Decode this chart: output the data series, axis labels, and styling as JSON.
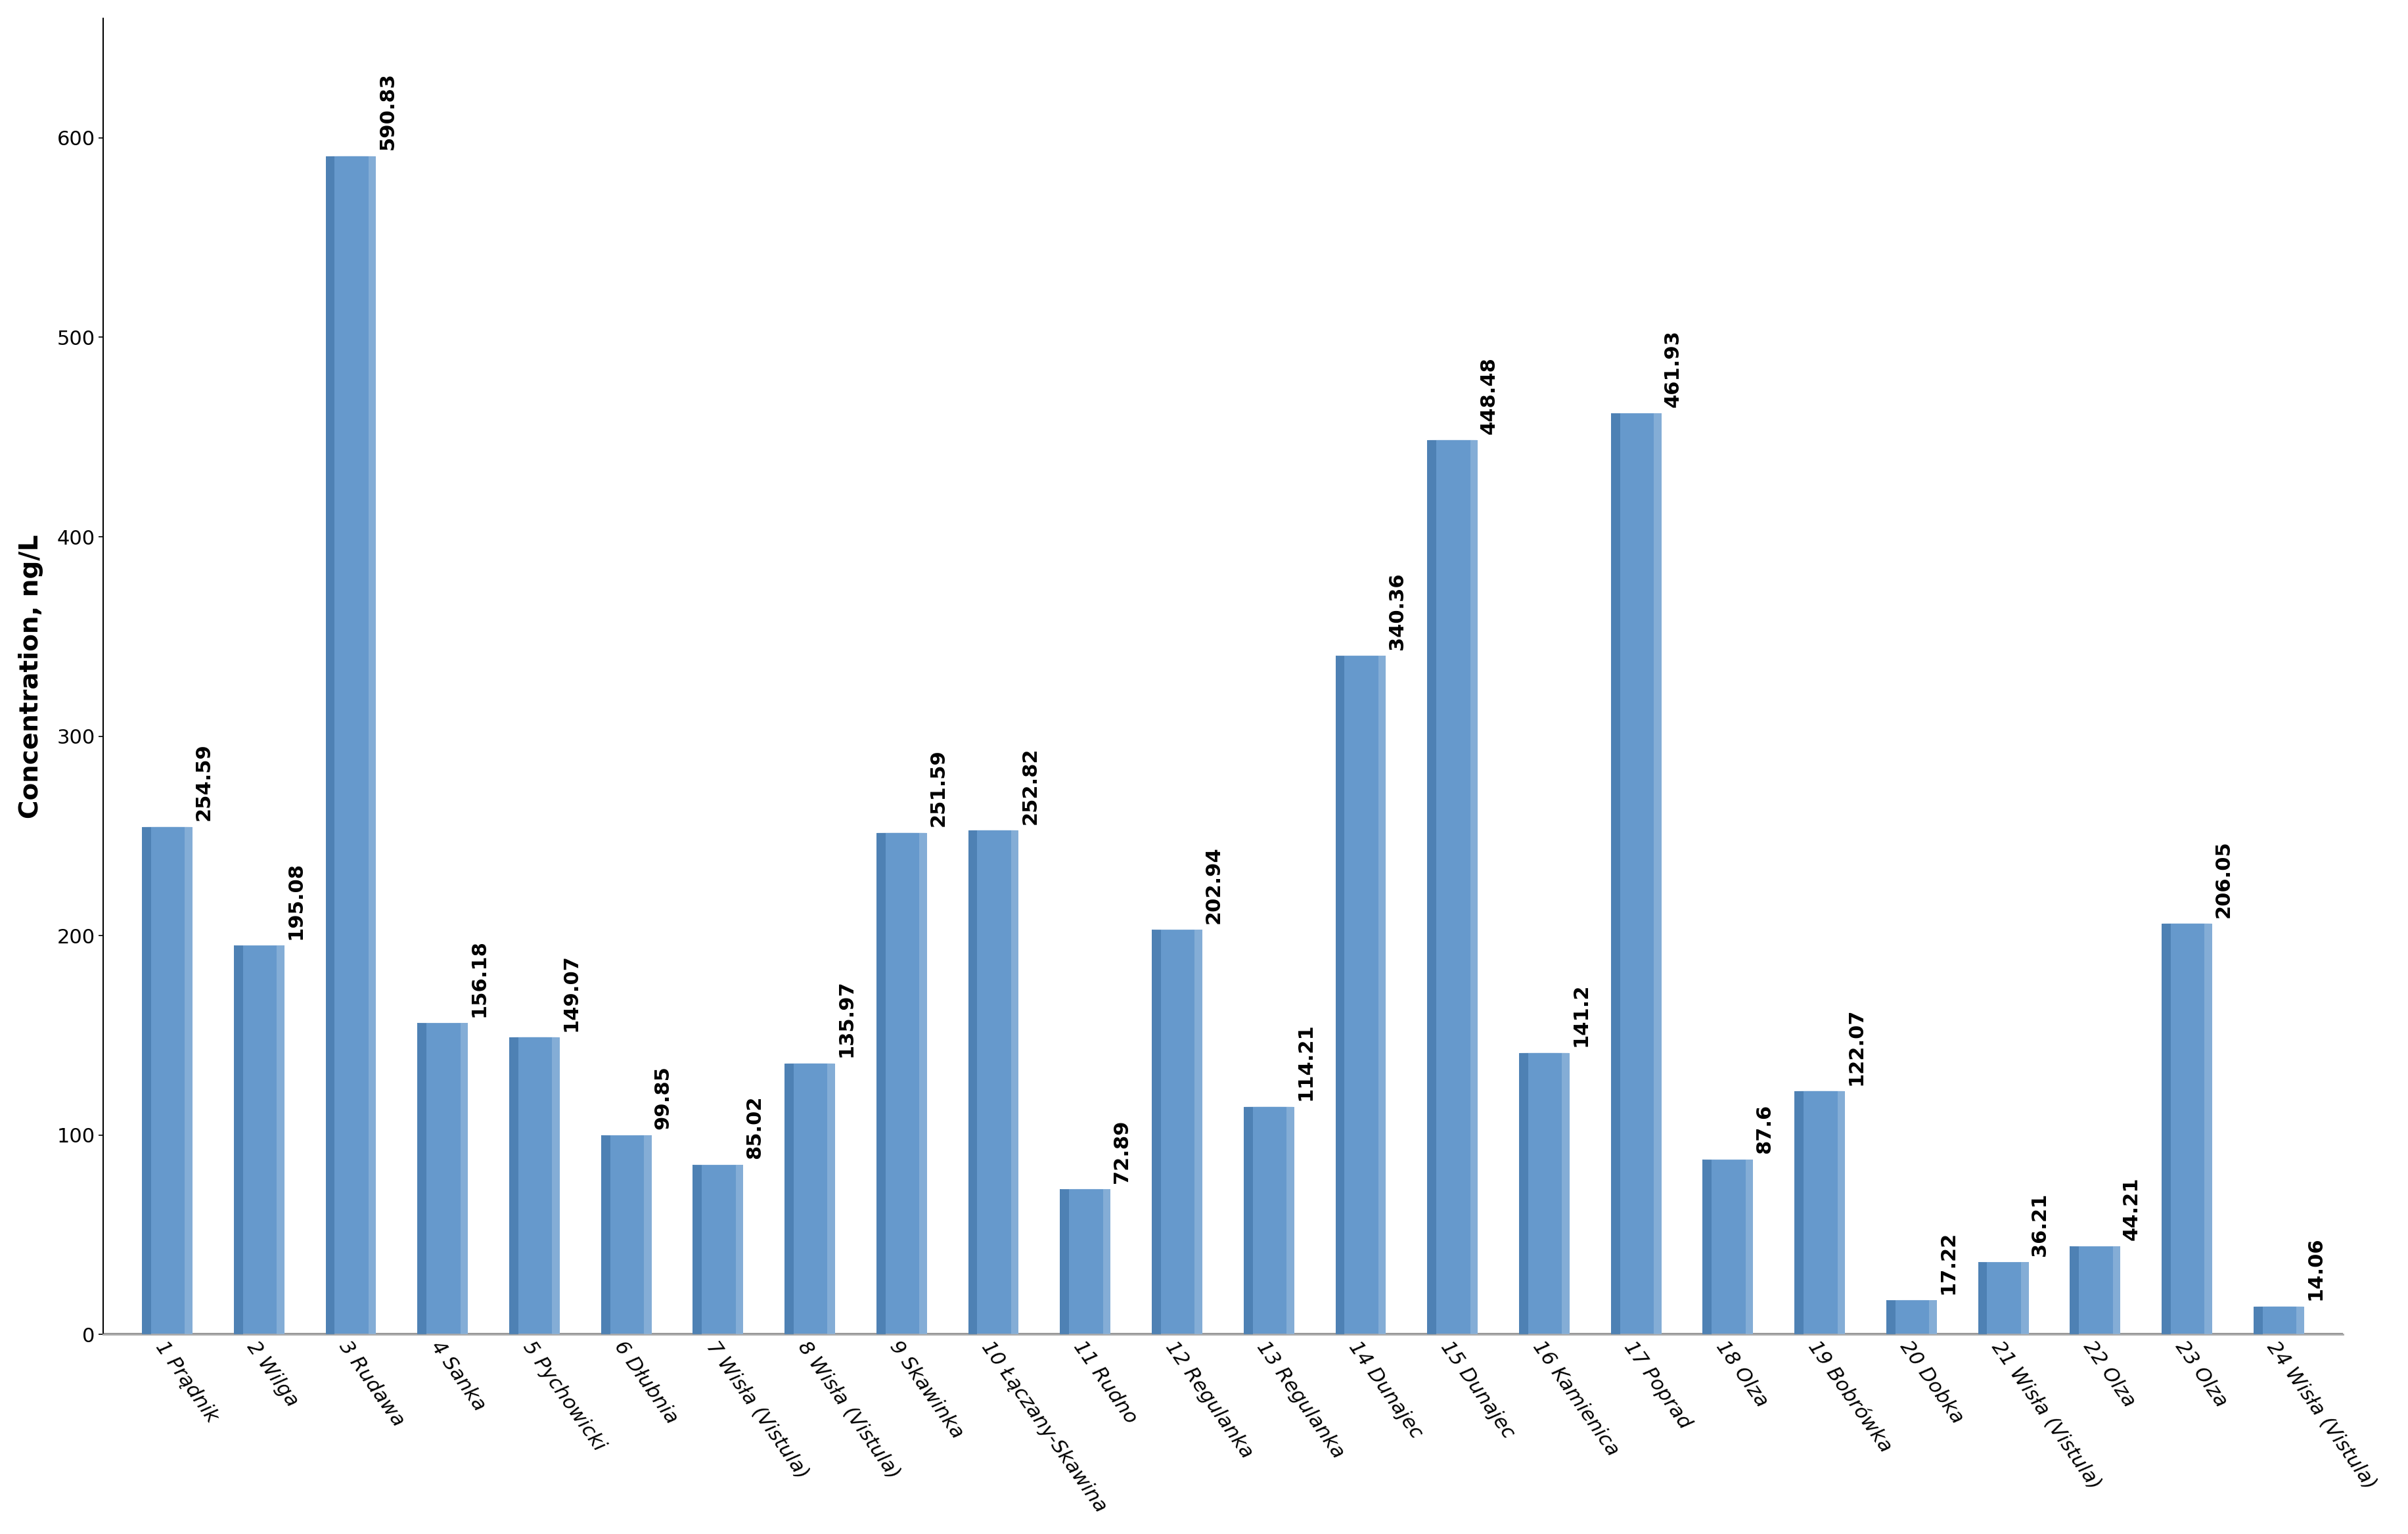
{
  "categories": [
    "1 Prądnik",
    "2 Wilga",
    "3 Rudawa",
    "4 Sanka",
    "5 Pychowicki",
    "6 Dłubnia",
    "7 Wisła (Vistula)",
    "8 Wisła (Vistula)",
    "9 Skawinka",
    "10 Łączany-Skawina",
    "11 Rudno",
    "12 Regulanka",
    "13 Regulanka",
    "14 Dunajec",
    "15 Dunajec",
    "16 Kamienica",
    "17 Poprad",
    "18 Olza",
    "19 Bobrówka",
    "20 Dobka",
    "21 Wisła (Vistula)",
    "22 Olza",
    "23 Olza",
    "24 Wisła (Vistula)"
  ],
  "values": [
    254.59,
    195.08,
    590.83,
    156.18,
    149.07,
    99.85,
    85.02,
    135.97,
    251.59,
    252.82,
    72.89,
    202.94,
    114.21,
    340.36,
    448.48,
    141.2,
    461.93,
    87.6,
    122.07,
    17.22,
    36.21,
    44.21,
    206.05,
    14.06
  ],
  "bar_color_main": "#6699cc",
  "bar_color_light": "#99bbdd",
  "bar_color_dark": "#4477aa",
  "bar_color_shadow": "#aabbcc",
  "ylabel": "Concentration, ng/L",
  "ylim": [
    0,
    660
  ],
  "yticks": [
    0,
    100,
    200,
    300,
    400,
    500,
    600
  ],
  "value_fontsize": 22,
  "tick_fontsize": 22,
  "ylabel_fontsize": 28,
  "bar_width": 0.55,
  "figure_facecolor": "#ffffff",
  "axes_facecolor": "#ffffff",
  "label_rotation": -55
}
